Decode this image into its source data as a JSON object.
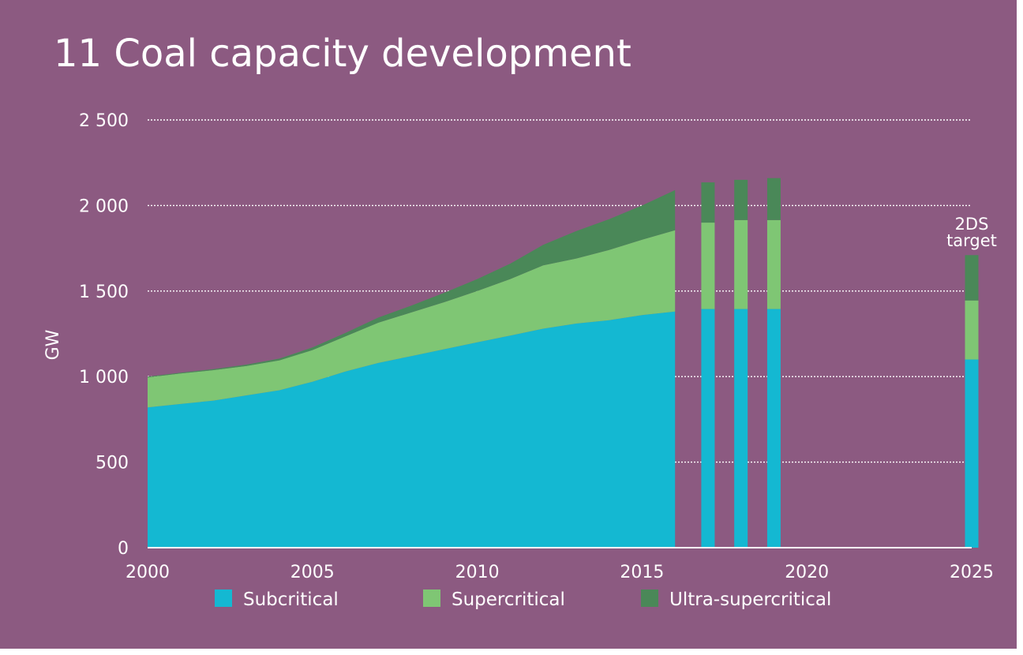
{
  "title": "11 Coal capacity development",
  "colors": {
    "background": "#8c5a81",
    "subcritical": "#14b8d2",
    "supercritical": "#7fc674",
    "ultra_supercritical": "#4a8858",
    "gridline": "#ffffff",
    "text": "#ffffff"
  },
  "chart_data": {
    "type": "area",
    "title": "11 Coal capacity development",
    "xlabel": "",
    "ylabel": "GW",
    "xlim": [
      2000,
      2025
    ],
    "ylim": [
      0,
      2500
    ],
    "x_ticks": [
      2000,
      2005,
      2010,
      2015,
      2020,
      2025
    ],
    "x_tick_labels": [
      "2000",
      "2005",
      "2010",
      "2015",
      "2020",
      "2025"
    ],
    "y_ticks": [
      0,
      500,
      1000,
      1500,
      2000,
      2500
    ],
    "y_tick_labels": [
      "0",
      "500",
      "1 000",
      "1 500",
      "2 000",
      "2 500"
    ],
    "grid": true,
    "legend_position": "bottom",
    "stacked": true,
    "area": {
      "x": [
        2000,
        2001,
        2002,
        2003,
        2004,
        2005,
        2006,
        2007,
        2008,
        2009,
        2010,
        2011,
        2012,
        2013,
        2014,
        2015,
        2016
      ],
      "series": [
        {
          "name": "Subcritical",
          "key": "subcritical",
          "values": [
            820,
            840,
            860,
            890,
            920,
            970,
            1030,
            1080,
            1120,
            1160,
            1200,
            1240,
            1280,
            1310,
            1330,
            1360,
            1380
          ]
        },
        {
          "name": "Supercritical",
          "key": "supercritical",
          "values": [
            175,
            178,
            178,
            172,
            175,
            185,
            205,
            235,
            255,
            275,
            300,
            330,
            370,
            380,
            410,
            440,
            475
          ]
        },
        {
          "name": "Ultra-supercritical",
          "key": "ultra_supercritical",
          "values": [
            5,
            5,
            6,
            8,
            10,
            15,
            20,
            30,
            40,
            55,
            70,
            90,
            120,
            160,
            180,
            200,
            235
          ]
        }
      ]
    },
    "bars": {
      "x": [
        2017,
        2018,
        2019,
        2025
      ],
      "series": [
        {
          "name": "Subcritical",
          "key": "subcritical",
          "values": [
            1395,
            1395,
            1395,
            1100
          ]
        },
        {
          "name": "Supercritical",
          "key": "supercritical",
          "values": [
            505,
            520,
            520,
            345
          ]
        },
        {
          "name": "Ultra-supercritical",
          "key": "ultra_supercritical",
          "values": [
            235,
            235,
            245,
            265
          ]
        }
      ]
    },
    "annotations": [
      {
        "x": 2025,
        "lines": [
          "2DS",
          "target"
        ]
      }
    ],
    "legend": [
      {
        "label": "Subcritical",
        "key": "subcritical"
      },
      {
        "label": "Supercritical",
        "key": "supercritical"
      },
      {
        "label": "Ultra-supercritical",
        "key": "ultra_supercritical"
      }
    ]
  }
}
